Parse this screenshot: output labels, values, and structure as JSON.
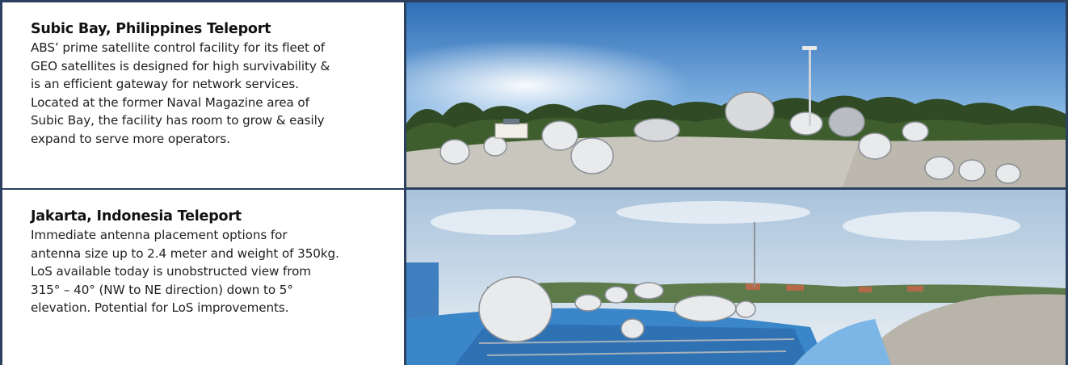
{
  "teleports": [
    {
      "title": "Subic Bay, Philippines Teleport",
      "description_lines": [
        "ABS’ prime satellite control facility for its fleet of",
        "GEO satellites is designed for high survivability &",
        "is an efficient gateway for network services.",
        "Located at the former Naval Magazine area of",
        "Subic Bay, the facility has room to grow & easily",
        "expand to serve more operators."
      ],
      "photo": "subic-bay-panorama-image"
    },
    {
      "title": "Jakarta, Indonesia Teleport",
      "description_lines": [
        "Immediate antenna placement options for",
        "antenna size up to 2.4 meter and weight of 350kg.",
        "LoS available today is unobstructed view from",
        "315° – 40° (NW to NE direction) down to 5°",
        "elevation. Potential for LoS improvements."
      ],
      "photo": "jakarta-panorama-image"
    }
  ],
  "colors": {
    "border": "#2b3f5e",
    "title_text": "#111111",
    "body_text": "#1f1f1f"
  }
}
